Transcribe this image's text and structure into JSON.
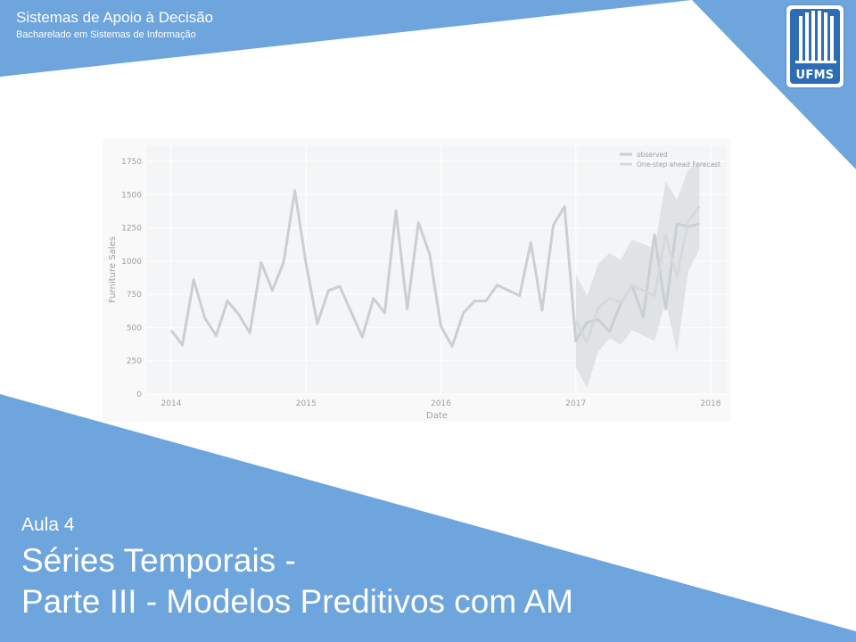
{
  "header": {
    "course_title": "Sistemas de Apoio à Decisão",
    "program": "Bacharelado em Sistemas de Informação"
  },
  "logo": {
    "text": "UFMS",
    "color": "#2e6db4"
  },
  "footer": {
    "lesson": "Aula 4",
    "title_line1": "Séries Temporais -",
    "title_line2": "Parte III - Modelos Preditivos com AM"
  },
  "colors": {
    "accent": "#6da5dc",
    "line": "#c9cfd3",
    "band": "#dde1e4",
    "axis_text": "#9aa1a6"
  },
  "chart_data": {
    "type": "line",
    "title": "",
    "xlabel": "Date",
    "ylabel": "Furniture Sales",
    "xlim": [
      "2014-01",
      "2018-01"
    ],
    "ylim": [
      0,
      1750
    ],
    "yticks": [
      0,
      250,
      500,
      750,
      1000,
      1250,
      1500,
      1750
    ],
    "xticks": [
      "2014",
      "2015",
      "2016",
      "2017",
      "2018"
    ],
    "legend": {
      "placement": "top-right",
      "entries": [
        "observed",
        "One-step ahead Forecast"
      ]
    },
    "series": [
      {
        "name": "observed",
        "x": [
          "2014-01",
          "2014-02",
          "2014-03",
          "2014-04",
          "2014-05",
          "2014-06",
          "2014-07",
          "2014-08",
          "2014-09",
          "2014-10",
          "2014-11",
          "2014-12",
          "2015-01",
          "2015-02",
          "2015-03",
          "2015-04",
          "2015-05",
          "2015-06",
          "2015-07",
          "2015-08",
          "2015-09",
          "2015-10",
          "2015-11",
          "2015-12",
          "2016-01",
          "2016-02",
          "2016-03",
          "2016-04",
          "2016-05",
          "2016-06",
          "2016-07",
          "2016-08",
          "2016-09",
          "2016-10",
          "2016-11",
          "2016-12",
          "2017-01",
          "2017-02",
          "2017-03",
          "2017-04",
          "2017-05",
          "2017-06",
          "2017-07",
          "2017-08",
          "2017-09",
          "2017-10",
          "2017-11",
          "2017-12"
        ],
        "values": [
          480,
          370,
          860,
          570,
          440,
          700,
          600,
          460,
          990,
          780,
          990,
          1530,
          980,
          530,
          780,
          810,
          620,
          430,
          720,
          610,
          1380,
          640,
          1290,
          1050,
          510,
          360,
          610,
          700,
          700,
          820,
          780,
          740,
          1140,
          630,
          1270,
          1410,
          400,
          540,
          560,
          470,
          680,
          820,
          580,
          1200,
          640,
          1280,
          1260,
          1280
        ]
      },
      {
        "name": "One-step ahead Forecast",
        "x": [
          "2017-01",
          "2017-02",
          "2017-03",
          "2017-04",
          "2017-05",
          "2017-06",
          "2017-07",
          "2017-08",
          "2017-09",
          "2017-10",
          "2017-11",
          "2017-12"
        ],
        "values": [
          550,
          390,
          650,
          720,
          690,
          820,
          780,
          740,
          1200,
          880,
          1300,
          1410
        ],
        "lower": [
          200,
          50,
          320,
          420,
          370,
          480,
          440,
          400,
          700,
          310,
          920,
          1090
        ],
        "upper": [
          900,
          740,
          980,
          1060,
          1010,
          1160,
          1130,
          1090,
          1600,
          1460,
          1690,
          1740
        ]
      }
    ],
    "grid": true
  }
}
